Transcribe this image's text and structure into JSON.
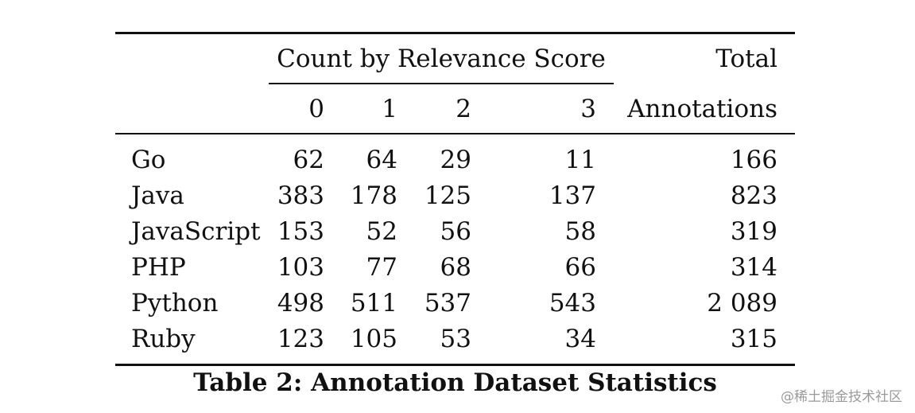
{
  "table": {
    "header": {
      "group_label": "Count by Relevance Score",
      "total_line1": "Total",
      "total_line2": "Annotations",
      "scores": [
        "0",
        "1",
        "2",
        "3"
      ]
    },
    "rows": [
      {
        "lang": "Go",
        "counts": [
          "62",
          "64",
          "29",
          "11"
        ],
        "total": "166"
      },
      {
        "lang": "Java",
        "counts": [
          "383",
          "178",
          "125",
          "137"
        ],
        "total": "823"
      },
      {
        "lang": "JavaScript",
        "counts": [
          "153",
          "52",
          "56",
          "58"
        ],
        "total": "319"
      },
      {
        "lang": "PHP",
        "counts": [
          "103",
          "77",
          "68",
          "66"
        ],
        "total": "314"
      },
      {
        "lang": "Python",
        "counts": [
          "498",
          "511",
          "537",
          "543"
        ],
        "total": "2 089"
      },
      {
        "lang": "Ruby",
        "counts": [
          "123",
          "105",
          "53",
          "34"
        ],
        "total": "315"
      }
    ]
  },
  "caption": "Table 2: Annotation Dataset Statistics",
  "watermark": "@稀土掘金技术社区"
}
